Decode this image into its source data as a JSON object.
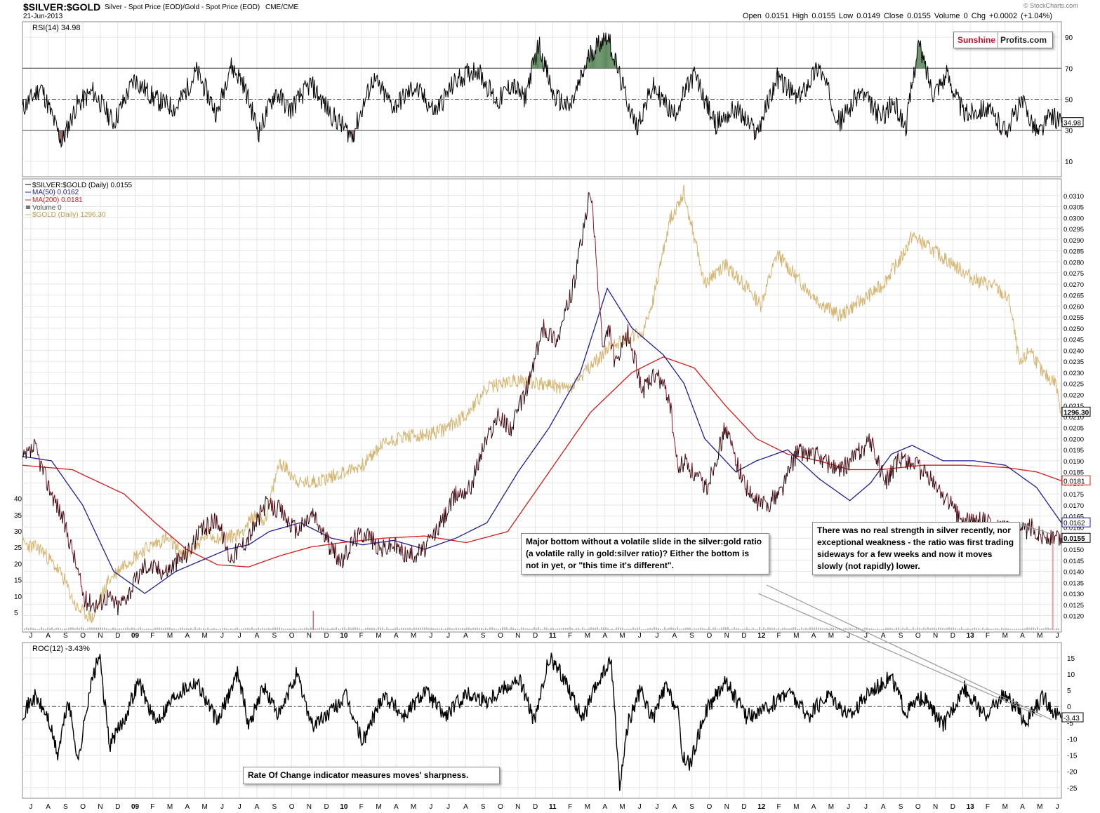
{
  "header": {
    "symbol": "$SILVER:$GOLD",
    "description": "Silver - Spot Price (EOD)/Gold - Spot Price (EOD)",
    "exchange": "CME/CME",
    "date": "21-Jun-2013",
    "quote": "Open 0.0151  High 0.0155  Low 0.0149  Close 0.0155  Volume 0  Chg +0.0002 (+1.04%)",
    "credit": "© StockCharts.com",
    "brand_a": "Sunshine",
    "brand_b": "Profits.com"
  },
  "annotations": {
    "recent": "There was no real strength in silver recently, nor exceptional weakness - the ratio was first trading sideways for a few weeks and now it moves slowly (not rapidly) lower.",
    "major_bottom": "Major bottom without a volatile slide in the silver:gold ratio (a volatile rally in gold:silver ratio)? Either the bottom is not in yet, or \"this time it's different\".",
    "roc_note": "Rate Of Change indicator measures moves' sharpness."
  },
  "colors": {
    "price": "#000000",
    "price_down": "#8b1a2b",
    "ma50": "#1f1f8f",
    "ma200": "#d41a1a",
    "gold": "#d4b470",
    "rsi_high_fill": "#5f8a5f",
    "rsi_low_fill": "#8a5f5f",
    "grid": "#e6e6e6"
  },
  "chart_data": [
    {
      "type": "line",
      "name": "rsi",
      "title": "RSI(14) 34.98",
      "ylim": [
        0,
        100
      ],
      "y_ticks": [
        90,
        70,
        50,
        30,
        10
      ],
      "reference_lines": [
        70,
        50,
        30
      ],
      "last_value_label": "34.98",
      "series": [
        {
          "name": "RSI(14)",
          "x": [
            2008.46,
            2008.55,
            2008.65,
            2008.72,
            2008.8,
            2008.9,
            2009.0,
            2009.1,
            2009.2,
            2009.3,
            2009.4,
            2009.46,
            2009.52,
            2009.6,
            2009.68,
            2009.75,
            2009.85,
            2009.95,
            2010.05,
            2010.15,
            2010.25,
            2010.35,
            2010.45,
            2010.55,
            2010.65,
            2010.75,
            2010.82,
            2010.88,
            2010.95,
            2011.02,
            2011.1,
            2011.2,
            2011.28,
            2011.35,
            2011.42,
            2011.5,
            2011.6,
            2011.7,
            2011.8,
            2011.9,
            2012.0,
            2012.1,
            2012.2,
            2012.3,
            2012.4,
            2012.5,
            2012.6,
            2012.66,
            2012.72,
            2012.78,
            2012.85,
            2012.92,
            2013.0,
            2013.1,
            2013.2,
            2013.28,
            2013.36,
            2013.42,
            2013.47
          ],
          "values": [
            44,
            58,
            22,
            46,
            55,
            35,
            63,
            50,
            44,
            68,
            40,
            72,
            62,
            29,
            55,
            43,
            60,
            40,
            26,
            63,
            45,
            58,
            42,
            62,
            70,
            48,
            60,
            50,
            86,
            52,
            44,
            80,
            92,
            60,
            32,
            58,
            40,
            66,
            34,
            44,
            28,
            64,
            50,
            72,
            35,
            55,
            38,
            48,
            32,
            86,
            55,
            66,
            40,
            45,
            30,
            48,
            28,
            40,
            35
          ]
        }
      ]
    },
    {
      "type": "line",
      "name": "main",
      "title": "$SILVER:$GOLD (Daily) 0.0155",
      "ylim": [
        0.0117,
        0.0315
      ],
      "y_ticks": [
        0.012,
        0.0125,
        0.013,
        0.0135,
        0.014,
        0.0145,
        0.015,
        0.0155,
        0.016,
        0.0165,
        0.017,
        0.0175,
        0.018,
        0.0185,
        0.019,
        0.0195,
        0.02,
        0.0205,
        0.021,
        0.0215,
        0.022,
        0.0225,
        0.023,
        0.0235,
        0.024,
        0.0245,
        0.025,
        0.0255,
        0.026,
        0.0265,
        0.027,
        0.0275,
        0.028,
        0.0285,
        0.029,
        0.0295,
        0.03,
        0.0305,
        0.031
      ],
      "volume_ticks": [
        5,
        10,
        15,
        20,
        25,
        30,
        35,
        40
      ],
      "legend": [
        "$SILVER:$GOLD (Daily) 0.0155",
        "MA(50) 0.0162",
        "MA(200) 0.0181",
        "Volume 0",
        "$GOLD (Daily) 1296.30"
      ],
      "price_labels": [
        "1296.30",
        "0.0181",
        "0.0162",
        "0.0155"
      ],
      "series": [
        {
          "name": "$SILVER:$GOLD",
          "x": [
            2008.46,
            2008.52,
            2008.58,
            2008.65,
            2008.7,
            2008.76,
            2008.82,
            2008.87,
            2008.92,
            2008.97,
            2009.05,
            2009.15,
            2009.25,
            2009.32,
            2009.4,
            2009.46,
            2009.52,
            2009.56,
            2009.63,
            2009.7,
            2009.78,
            2009.86,
            2009.94,
            2010.0,
            2010.06,
            2010.12,
            2010.18,
            2010.25,
            2010.32,
            2010.4,
            2010.48,
            2010.55,
            2010.62,
            2010.68,
            2010.75,
            2010.82,
            2010.9,
            2010.97,
            2011.04,
            2011.12,
            2011.2,
            2011.26,
            2011.29,
            2011.32,
            2011.38,
            2011.45,
            2011.52,
            2011.58,
            2011.62,
            2011.66,
            2011.7,
            2011.76,
            2011.85,
            2011.92,
            2011.98,
            2012.05,
            2012.12,
            2012.2,
            2012.3,
            2012.4,
            2012.48,
            2012.55,
            2012.62,
            2012.7,
            2012.78,
            2012.85,
            2012.92,
            2013.0,
            2013.08,
            2013.15,
            2013.22,
            2013.26,
            2013.32,
            2013.38,
            2013.42,
            2013.47
          ],
          "values": [
            0.019,
            0.0196,
            0.018,
            0.0165,
            0.015,
            0.0127,
            0.0125,
            0.0129,
            0.0124,
            0.013,
            0.0143,
            0.014,
            0.0148,
            0.0158,
            0.0164,
            0.0146,
            0.0152,
            0.0157,
            0.017,
            0.0168,
            0.0158,
            0.0166,
            0.0152,
            0.0144,
            0.0155,
            0.0158,
            0.015,
            0.0152,
            0.0147,
            0.015,
            0.0162,
            0.0175,
            0.0178,
            0.0196,
            0.021,
            0.0205,
            0.0225,
            0.025,
            0.0245,
            0.027,
            0.0313,
            0.024,
            0.025,
            0.0233,
            0.0248,
            0.0222,
            0.0229,
            0.0218,
            0.0186,
            0.019,
            0.0183,
            0.0178,
            0.0205,
            0.0185,
            0.0172,
            0.017,
            0.0177,
            0.0195,
            0.0192,
            0.0185,
            0.0193,
            0.0199,
            0.018,
            0.0192,
            0.0187,
            0.018,
            0.0172,
            0.0162,
            0.0163,
            0.016,
            0.0158,
            0.0156,
            0.016,
            0.0156,
            0.0155,
            0.0155
          ]
        },
        {
          "name": "MA(50)",
          "x": [
            2008.46,
            2008.6,
            2008.75,
            2008.9,
            2009.05,
            2009.2,
            2009.35,
            2009.45,
            2009.55,
            2009.65,
            2009.8,
            2009.95,
            2010.1,
            2010.25,
            2010.4,
            2010.55,
            2010.7,
            2010.85,
            2011.0,
            2011.15,
            2011.28,
            2011.4,
            2011.55,
            2011.65,
            2011.75,
            2011.9,
            2012.0,
            2012.15,
            2012.3,
            2012.45,
            2012.55,
            2012.65,
            2012.75,
            2012.9,
            2013.05,
            2013.2,
            2013.35,
            2013.47
          ],
          "values": [
            0.0192,
            0.019,
            0.017,
            0.014,
            0.013,
            0.014,
            0.0146,
            0.015,
            0.0152,
            0.0158,
            0.0162,
            0.0155,
            0.0152,
            0.0154,
            0.015,
            0.0155,
            0.0162,
            0.0185,
            0.0205,
            0.023,
            0.0268,
            0.025,
            0.0238,
            0.0225,
            0.02,
            0.0185,
            0.019,
            0.0195,
            0.0182,
            0.0172,
            0.018,
            0.0193,
            0.0197,
            0.019,
            0.019,
            0.0188,
            0.0178,
            0.0162
          ]
        },
        {
          "name": "MA(200)",
          "x": [
            2008.46,
            2008.7,
            2008.95,
            2009.1,
            2009.25,
            2009.4,
            2009.55,
            2009.7,
            2009.85,
            2010.0,
            2010.2,
            2010.4,
            2010.6,
            2010.8,
            2011.0,
            2011.2,
            2011.4,
            2011.55,
            2011.7,
            2011.85,
            2012.0,
            2012.15,
            2012.3,
            2012.45,
            2012.6,
            2012.8,
            2013.0,
            2013.2,
            2013.35,
            2013.47
          ],
          "values": [
            0.0188,
            0.0186,
            0.0175,
            0.0162,
            0.015,
            0.0143,
            0.0142,
            0.0147,
            0.0151,
            0.0153,
            0.0155,
            0.0156,
            0.0153,
            0.0158,
            0.0185,
            0.0212,
            0.023,
            0.0237,
            0.0232,
            0.0215,
            0.02,
            0.0193,
            0.019,
            0.0186,
            0.0186,
            0.0188,
            0.0188,
            0.0187,
            0.0185,
            0.0181
          ]
        },
        {
          "name": "$GOLD",
          "x": [
            2008.46,
            2008.55,
            2008.65,
            2008.72,
            2008.8,
            2008.87,
            2008.95,
            2009.05,
            2009.15,
            2009.25,
            2009.35,
            2009.42,
            2009.5,
            2009.58,
            2009.63,
            2009.7,
            2009.8,
            2009.9,
            2010.0,
            2010.1,
            2010.2,
            2010.3,
            2010.4,
            2010.5,
            2010.6,
            2010.7,
            2010.8,
            2010.9,
            2011.0,
            2011.1,
            2011.2,
            2011.3,
            2011.38,
            2011.45,
            2011.5,
            2011.58,
            2011.65,
            2011.75,
            2011.85,
            2011.95,
            2012.02,
            2012.1,
            2012.2,
            2012.3,
            2012.4,
            2012.5,
            2012.6,
            2012.7,
            2012.75,
            2012.85,
            2012.95,
            2013.05,
            2013.15,
            2013.22,
            2013.27,
            2013.32,
            2013.38,
            2013.44,
            2013.47
          ],
          "values": [
            935,
            920,
            850,
            760,
            730,
            830,
            880,
            920,
            950,
            900,
            960,
            950,
            960,
            1010,
            1000,
            1160,
            1100,
            1110,
            1130,
            1150,
            1210,
            1230,
            1230,
            1250,
            1290,
            1360,
            1380,
            1380,
            1370,
            1360,
            1420,
            1480,
            1500,
            1510,
            1600,
            1820,
            1900,
            1650,
            1700,
            1640,
            1590,
            1730,
            1660,
            1600,
            1560,
            1600,
            1640,
            1720,
            1780,
            1740,
            1700,
            1660,
            1640,
            1600,
            1420,
            1470,
            1400,
            1380,
            1296
          ]
        }
      ]
    },
    {
      "type": "line",
      "name": "roc",
      "title": "ROC(12) -3.43%",
      "ylim": [
        -27,
        18
      ],
      "y_ticks": [
        15,
        10,
        5,
        0,
        -5,
        -10,
        -15,
        -20,
        -25
      ],
      "reference_lines": [
        0
      ],
      "last_value_label": "-3.43",
      "series": [
        {
          "name": "ROC(12)",
          "x": [
            2008.46,
            2008.52,
            2008.58,
            2008.63,
            2008.68,
            2008.73,
            2008.78,
            2008.83,
            2008.88,
            2008.95,
            2009.02,
            2009.1,
            2009.2,
            2009.3,
            2009.4,
            2009.5,
            2009.55,
            2009.62,
            2009.7,
            2009.78,
            2009.86,
            2009.94,
            2010.02,
            2010.1,
            2010.2,
            2010.3,
            2010.4,
            2010.5,
            2010.6,
            2010.7,
            2010.78,
            2010.86,
            2010.93,
            2011.0,
            2011.08,
            2011.16,
            2011.24,
            2011.3,
            2011.34,
            2011.38,
            2011.44,
            2011.5,
            2011.56,
            2011.62,
            2011.64,
            2011.68,
            2011.75,
            2011.85,
            2011.95,
            2012.05,
            2012.15,
            2012.25,
            2012.35,
            2012.45,
            2012.55,
            2012.65,
            2012.72,
            2012.8,
            2012.9,
            2013.0,
            2013.1,
            2013.2,
            2013.3,
            2013.38,
            2013.44,
            2013.47
          ],
          "values": [
            -2,
            3,
            -3,
            -15,
            2,
            -17,
            4,
            16,
            -12,
            -4,
            8,
            -5,
            4,
            8,
            -5,
            11,
            -6,
            6,
            -3,
            10,
            -6,
            -2,
            3,
            -11,
            4,
            -3,
            5,
            -3,
            4,
            2,
            6,
            8,
            -5,
            15,
            8,
            -4,
            8,
            14,
            -25,
            -5,
            5,
            -4,
            6,
            -1,
            -15,
            -18,
            -2,
            8,
            -3,
            -1,
            5,
            -3,
            4,
            -3,
            5,
            9,
            -2,
            3,
            -6,
            6,
            -3,
            4,
            -5,
            3,
            -2,
            -3.43
          ]
        }
      ]
    }
  ],
  "x_axis": {
    "labels": [
      "J",
      "A",
      "S",
      "O",
      "N",
      "D",
      "09",
      "F",
      "M",
      "A",
      "M",
      "J",
      "J",
      "A",
      "S",
      "O",
      "N",
      "D",
      "10",
      "F",
      "M",
      "A",
      "M",
      "J",
      "J",
      "A",
      "S",
      "O",
      "N",
      "D",
      "11",
      "F",
      "M",
      "A",
      "M",
      "J",
      "J",
      "A",
      "S",
      "O",
      "N",
      "D",
      "12",
      "F",
      "M",
      "A",
      "M",
      "J",
      "J",
      "A",
      "S",
      "O",
      "N",
      "D",
      "13",
      "F",
      "M",
      "A",
      "M",
      "J"
    ],
    "bold_labels": [
      "09",
      "10",
      "11",
      "12",
      "13"
    ],
    "start": 2008.46,
    "end": 2013.47
  }
}
